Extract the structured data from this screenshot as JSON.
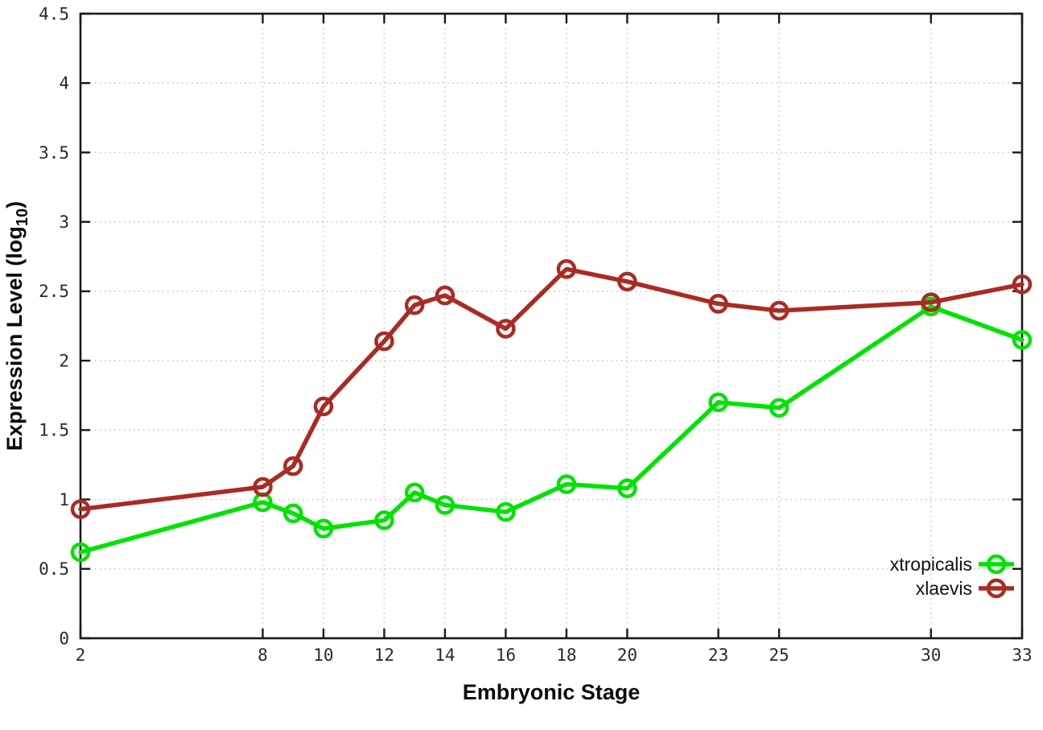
{
  "figure": {
    "xlabel": "Embryonic Stage",
    "ylabel_prefix": "Expression Level (log",
    "ylabel_sub": "10",
    "ylabel_suffix": ")",
    "background_color": "#ffffff",
    "axis_color": "#1a1a1a",
    "grid_color": "#c4c4c4"
  },
  "chart_data": {
    "type": "line",
    "title": "",
    "xlabel": "Embryonic Stage",
    "ylabel": "Expression Level (log10)",
    "xlim": [
      2,
      33
    ],
    "ylim": [
      0,
      4.5
    ],
    "grid": true,
    "grid_style": "dotted",
    "ticks_mirrored": true,
    "legend_position": "bottom-right-inside",
    "legend_box": false,
    "marker": "open-circle",
    "x_tick_values": [
      2,
      8,
      10,
      12,
      14,
      16,
      18,
      20,
      23,
      25,
      30,
      33
    ],
    "x_tick_labels": [
      "2",
      "8",
      "10",
      "12",
      "14",
      "16",
      "18",
      "20",
      "23",
      "25",
      "30",
      "33"
    ],
    "y_tick_values": [
      0,
      0.5,
      1,
      1.5,
      2,
      2.5,
      3,
      3.5,
      4,
      4.5
    ],
    "y_tick_labels": [
      "0",
      "0.5",
      "1",
      "1.5",
      "2",
      "2.5",
      "3",
      "3.5",
      "4",
      "4.5"
    ],
    "x": [
      2,
      8,
      9,
      10,
      12,
      13,
      14,
      16,
      18,
      20,
      23,
      25,
      30,
      33
    ],
    "series": [
      {
        "name": "xtropicalis",
        "color": "#00e300",
        "values": [
          0.62,
          0.98,
          0.9,
          0.79,
          0.85,
          1.05,
          0.96,
          0.91,
          1.11,
          1.08,
          1.7,
          1.66,
          2.39,
          2.15
        ]
      },
      {
        "name": "xlaevis",
        "color": "#aa2b24",
        "values": [
          0.93,
          1.09,
          1.24,
          1.67,
          2.14,
          2.4,
          2.47,
          2.23,
          2.66,
          2.57,
          2.41,
          2.36,
          2.42,
          2.55
        ]
      }
    ]
  }
}
